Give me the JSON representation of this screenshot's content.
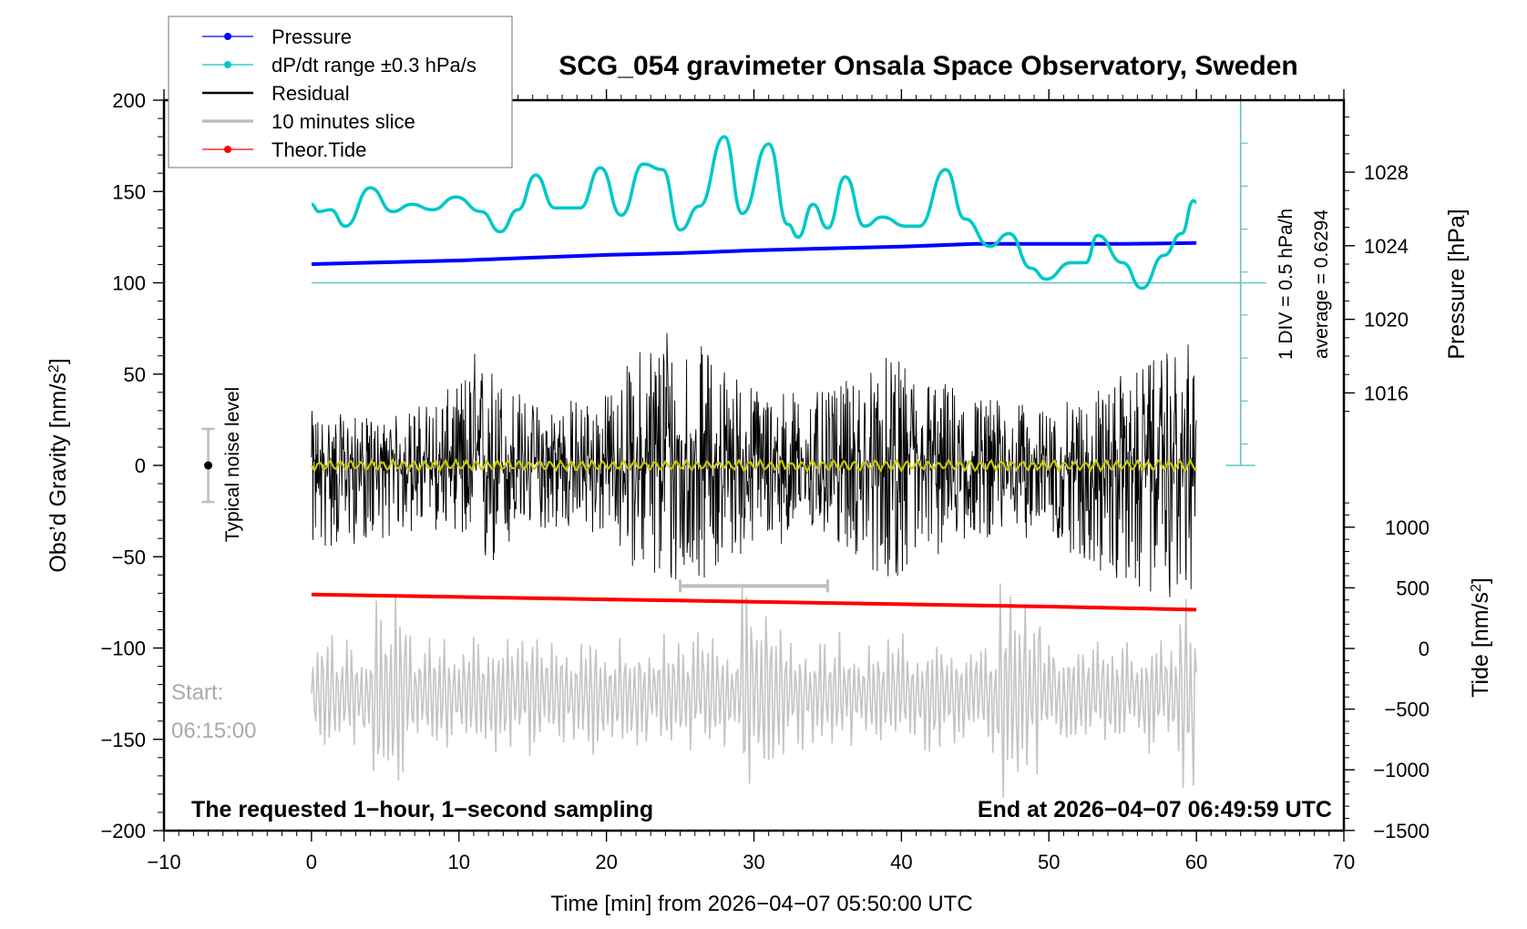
{
  "chart_data": {
    "type": "line",
    "title": "SCG_054 gravimeter Onsala Space Observatory, Sweden",
    "xlabel": "Time [min] from 2026−04−07 05:50:00 UTC",
    "ylabel_left": "Obs’d Gravity [nm/s²]",
    "ylabel_left_main": "Obs’d Gravity [nm/s",
    "ylabel_left_sup": "2",
    "ylabel_left_end": "]",
    "ylabel_right_top": "Pressure [hPa]",
    "ylabel_right_bottom": "Tide [nm/s²]",
    "ylabel_right_bottom_main": "Tide [nm/s",
    "ylabel_right_bottom_sup": "2",
    "ylabel_right_bottom_end": "]",
    "xlim": [
      -10,
      70
    ],
    "ylim": [
      -200,
      200
    ],
    "pressure_ylim_ticks": [
      1016,
      1020,
      1024,
      1028
    ],
    "tide_ylim": [
      -1500,
      1000
    ],
    "grid": false,
    "legend_position": "top-left",
    "x_ticks": [
      "−10",
      "0",
      "10",
      "20",
      "30",
      "40",
      "50",
      "60",
      "70"
    ],
    "x_tick_values": [
      -10,
      0,
      10,
      20,
      30,
      40,
      50,
      60,
      70
    ],
    "y_ticks": [
      "200",
      "150",
      "100",
      "50",
      "0",
      "−50",
      "−100",
      "−150",
      "−200"
    ],
    "y_tick_values": [
      200,
      150,
      100,
      50,
      0,
      -50,
      -100,
      -150,
      -200
    ],
    "pressure_ticks": [
      "1028",
      "1024",
      "1020",
      "1016"
    ],
    "pressure_tick_values": [
      1028,
      1024,
      1020,
      1016
    ],
    "tide_ticks": [
      "1000",
      "500",
      "0",
      "−500",
      "−1000",
      "−1500"
    ],
    "tide_tick_values": [
      1000,
      500,
      0,
      -500,
      -1000,
      -1500
    ],
    "legend": [
      {
        "label": "Pressure",
        "color": "#0000ff",
        "marker": true
      },
      {
        "label": "dP/dt range ±0.3 hPa/s",
        "color": "#00c8c8",
        "marker": true
      },
      {
        "label": "Residual",
        "color": "#000000",
        "marker": false
      },
      {
        "label": "10 minutes slice",
        "color": "#bebebe",
        "marker": false
      },
      {
        "label": "Theor.Tide",
        "color": "#ff0000",
        "marker": true
      }
    ],
    "series": [
      {
        "name": "Pressure",
        "units": "hPa",
        "color": "#0000ff",
        "x": [
          0,
          5,
          10,
          15,
          20,
          25,
          30,
          35,
          40,
          45,
          50,
          55,
          60
        ],
        "values": [
          1023.0,
          1023.1,
          1023.2,
          1023.35,
          1023.5,
          1023.6,
          1023.75,
          1023.85,
          1023.95,
          1024.1,
          1024.1,
          1024.1,
          1024.15
        ]
      },
      {
        "name": "dP/dt range ±0.3 hPa/s",
        "units": "gravity-axis scale",
        "color": "#00c8c8",
        "x": [
          0,
          0.5,
          1.3,
          2.3,
          4.0,
          5.5,
          6.8,
          8.2,
          9.8,
          11.5,
          12.8,
          14.0,
          15.2,
          16.5,
          18.2,
          19.6,
          21.0,
          22.5,
          23.8,
          25.0,
          26.3,
          28.0,
          29.2,
          31.0,
          32.3,
          33.0,
          34.0,
          35.0,
          36.2,
          37.5,
          38.7,
          40.3,
          41.2,
          43.0,
          44.3,
          46.0,
          47.3,
          48.8,
          49.8,
          51.5,
          52.5,
          53.3,
          55.0,
          56.3,
          57.8,
          59.0,
          59.8,
          60.0
        ],
        "values": [
          143,
          139,
          140,
          131,
          152,
          139,
          143,
          140,
          147,
          139,
          128,
          140,
          159,
          141,
          141,
          163,
          137,
          165,
          162,
          129,
          142,
          180,
          138,
          176,
          132,
          125,
          143,
          130,
          158,
          131,
          136,
          131,
          131,
          162,
          135,
          120,
          127,
          108,
          102,
          111,
          111,
          126,
          111,
          97,
          115,
          127,
          145,
          144
        ]
      },
      {
        "name": "Residual",
        "units": "nm/s²",
        "color": "#000000",
        "description": "high-frequency noise centred on 0, peaks to about +86 and −76",
        "envelope_x": [
          0,
          5,
          10,
          11,
          15,
          20,
          24,
          25,
          30,
          35,
          39,
          45,
          50,
          55,
          60
        ],
        "envelope_max": [
          30,
          25,
          45,
          65,
          35,
          40,
          86,
          75,
          45,
          40,
          60,
          40,
          30,
          50,
          69
        ],
        "envelope_min": [
          -50,
          -40,
          -35,
          -72,
          -35,
          -40,
          -75,
          -70,
          -45,
          -40,
          -65,
          -40,
          -40,
          -70,
          -75
        ]
      },
      {
        "name": "Residual (smoothed)",
        "units": "nm/s²",
        "color": "#c8c800",
        "x": [
          0,
          60
        ],
        "values": [
          0,
          0
        ]
      },
      {
        "name": "10 minutes slice",
        "units": "nm/s² (offset)",
        "color": "#bebebe",
        "description": "zoomed 10-minute slice drawn below, start 06:15:00",
        "slice_start_min": 25,
        "slice_end_min": 35
      },
      {
        "name": "Theor.Tide",
        "units": "nm/s²",
        "color": "#ff0000",
        "x": [
          0,
          10,
          20,
          30,
          40,
          50,
          60
        ],
        "values": [
          445,
          425,
          405,
          385,
          365,
          345,
          320
        ]
      }
    ],
    "annotations": {
      "noise_label": "Typical noise level",
      "noise_range": [
        -20,
        20
      ],
      "noise_x": -7,
      "start_label": "Start:",
      "start_time": "06:15:00",
      "div_label": "1 DIV = 0.5 hPa/h",
      "average_label": "average = 0.6294",
      "footer_left": "The requested 1−hour, 1−second sampling",
      "footer_right": "End at 2026−04−07 06:49:59 UTC",
      "dpdt_reference_level": 100,
      "dpdt_axis_x": 63
    }
  }
}
